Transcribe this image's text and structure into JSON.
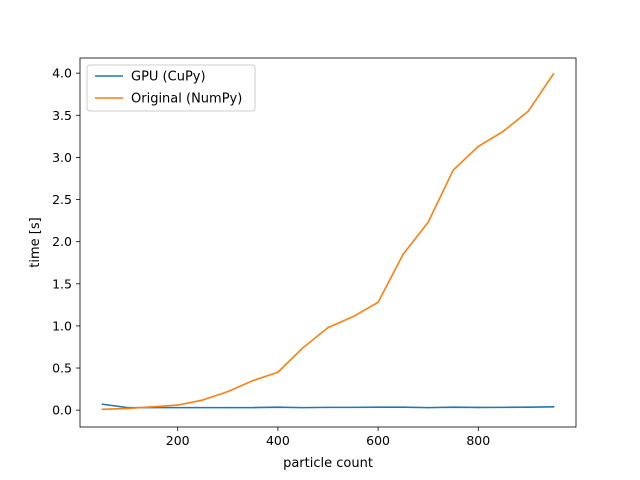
{
  "chart_data": {
    "type": "line",
    "title": "",
    "xlabel": "particle count",
    "ylabel": "time [s]",
    "xlim": [
      5,
      995
    ],
    "ylim": [
      -0.2,
      4.18
    ],
    "xticks": [
      200,
      400,
      600,
      800
    ],
    "yticks": [
      0.0,
      0.5,
      1.0,
      1.5,
      2.0,
      2.5,
      3.0,
      3.5,
      4.0
    ],
    "xtick_labels": [
      "200",
      "400",
      "600",
      "800"
    ],
    "ytick_labels": [
      "0.0",
      "0.5",
      "1.0",
      "1.5",
      "2.0",
      "2.5",
      "3.0",
      "3.5",
      "4.0"
    ],
    "grid": false,
    "legend_position": "top-left",
    "x": [
      50,
      100,
      150,
      200,
      250,
      300,
      350,
      400,
      450,
      500,
      550,
      600,
      650,
      700,
      750,
      800,
      850,
      900,
      950
    ],
    "series": [
      {
        "name": "GPU (CuPy)",
        "color": "#1f77b4",
        "values": [
          0.07,
          0.03,
          0.03,
          0.03,
          0.03,
          0.03,
          0.03,
          0.035,
          0.03,
          0.033,
          0.033,
          0.035,
          0.035,
          0.03,
          0.035,
          0.032,
          0.033,
          0.035,
          0.04
        ]
      },
      {
        "name": "Original (NumPy)",
        "color": "#ff7f0e",
        "values": [
          0.01,
          0.02,
          0.04,
          0.06,
          0.12,
          0.22,
          0.35,
          0.45,
          0.74,
          0.98,
          1.11,
          1.28,
          1.85,
          2.23,
          2.85,
          3.13,
          3.31,
          3.55,
          3.99
        ]
      }
    ]
  }
}
